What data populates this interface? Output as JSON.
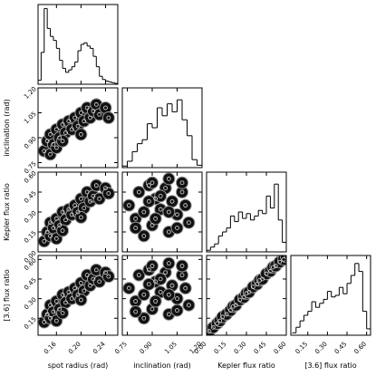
{
  "chart_data": {
    "type": "corner",
    "parameters": [
      {
        "label": "spot radius (rad)",
        "lim": [
          0.13,
          0.26
        ],
        "ticks": [
          0.16,
          {
            "value": 0.2,
            "label": "0.20"
          },
          0.24
        ],
        "bins": [
          0.13,
          0.135,
          0.14,
          0.145,
          0.15,
          0.155,
          0.16,
          0.165,
          0.17,
          0.175,
          0.18,
          0.185,
          0.19,
          0.195,
          0.2,
          0.205,
          0.21,
          0.215,
          0.22,
          0.225,
          0.23,
          0.235,
          0.24,
          0.245,
          0.25,
          0.255,
          0.26
        ],
        "counts": [
          5,
          40,
          95,
          70,
          60,
          55,
          45,
          30,
          20,
          15,
          18,
          22,
          28,
          42,
          50,
          52,
          48,
          45,
          35,
          22,
          10,
          6,
          4,
          3,
          2,
          1
        ]
      },
      {
        "label": "inclination (rad)",
        "lim": [
          0.72,
          1.2
        ],
        "ticks": [
          0.75,
          {
            "value": 0.9,
            "label": "0.90"
          },
          1.05,
          {
            "value": 1.2,
            "label": "1.20"
          }
        ],
        "bins": [
          0.72,
          0.75,
          0.78,
          0.81,
          0.84,
          0.87,
          0.9,
          0.93,
          0.96,
          0.99,
          1.02,
          1.05,
          1.08,
          1.11,
          1.14,
          1.17,
          1.2
        ],
        "counts": [
          2,
          8,
          20,
          30,
          35,
          55,
          50,
          75,
          65,
          80,
          70,
          85,
          60,
          40,
          10,
          3
        ]
      },
      {
        "label": "Kepler flux ratio",
        "lim": [
          0,
          0.6
        ],
        "ticks": [
          {
            "value": 0,
            "label": "0.00"
          },
          0.15,
          {
            "value": 0.3,
            "label": "0.30"
          },
          0.45,
          {
            "value": 0.6,
            "label": "0.60"
          }
        ],
        "bins": [
          0,
          0.03,
          0.06,
          0.09,
          0.12,
          0.15,
          0.18,
          0.21,
          0.24,
          0.27,
          0.3,
          0.33,
          0.36,
          0.39,
          0.42,
          0.45,
          0.48,
          0.51,
          0.54,
          0.57,
          0.6
        ],
        "counts": [
          2,
          6,
          10,
          20,
          25,
          30,
          45,
          38,
          50,
          42,
          48,
          40,
          45,
          52,
          48,
          70,
          55,
          85,
          40,
          12
        ]
      },
      {
        "label": "[3.6] flux ratio",
        "lim": [
          0.02,
          0.63
        ],
        "ticks": [
          0.15,
          {
            "value": 0.3,
            "label": "0.30"
          },
          0.45,
          {
            "value": 0.6,
            "label": "0.60"
          }
        ],
        "bins": [
          0.03,
          0.06,
          0.09,
          0.12,
          0.15,
          0.18,
          0.21,
          0.24,
          0.27,
          0.3,
          0.33,
          0.36,
          0.39,
          0.42,
          0.45,
          0.48,
          0.51,
          0.54,
          0.57,
          0.6,
          0.63
        ],
        "counts": [
          3,
          10,
          18,
          25,
          30,
          42,
          35,
          40,
          45,
          55,
          48,
          50,
          60,
          52,
          65,
          75,
          90,
          80,
          30,
          8
        ]
      }
    ],
    "hist_ylim": [
      0,
      100
    ],
    "pairs": [
      {
        "x": [
          0.14,
          0.145,
          0.15,
          0.15,
          0.155,
          0.16,
          0.16,
          0.165,
          0.17,
          0.175,
          0.18,
          0.185,
          0.19,
          0.195,
          0.2,
          0.205,
          0.21,
          0.215,
          0.22,
          0.225,
          0.23,
          0.24,
          0.245,
          0.17,
          0.2
        ],
        "y": [
          0.82,
          0.88,
          0.8,
          0.92,
          0.86,
          0.95,
          0.84,
          0.9,
          0.98,
          0.93,
          1.0,
          0.95,
          1.02,
          0.97,
          1.05,
          1.0,
          1.08,
          1.02,
          1.06,
          1.1,
          1.04,
          1.08,
          1.02,
          0.88,
          0.92
        ]
      },
      {
        "x": [
          0.14,
          0.145,
          0.15,
          0.15,
          0.155,
          0.16,
          0.16,
          0.165,
          0.17,
          0.175,
          0.18,
          0.185,
          0.19,
          0.195,
          0.2,
          0.205,
          0.21,
          0.215,
          0.22,
          0.225,
          0.23,
          0.24,
          0.245,
          0.17,
          0.2
        ],
        "y": [
          0.08,
          0.15,
          0.12,
          0.22,
          0.18,
          0.25,
          0.1,
          0.2,
          0.3,
          0.24,
          0.32,
          0.28,
          0.35,
          0.3,
          0.4,
          0.33,
          0.45,
          0.38,
          0.42,
          0.5,
          0.4,
          0.48,
          0.44,
          0.16,
          0.26
        ]
      },
      {
        "x": [
          0.76,
          0.8,
          0.82,
          0.85,
          0.88,
          0.9,
          0.92,
          0.95,
          0.98,
          1.0,
          1.02,
          1.05,
          1.08,
          1.1,
          1.12,
          0.85,
          0.9,
          0.95,
          1.0,
          1.05,
          0.8,
          0.92,
          1.0,
          1.08,
          0.88
        ],
        "y": [
          0.35,
          0.25,
          0.45,
          0.3,
          0.5,
          0.2,
          0.4,
          0.32,
          0.48,
          0.15,
          0.38,
          0.28,
          0.45,
          0.35,
          0.22,
          0.12,
          0.52,
          0.42,
          0.55,
          0.18,
          0.18,
          0.25,
          0.3,
          0.52,
          0.38
        ]
      },
      {
        "x": [
          0.14,
          0.145,
          0.15,
          0.15,
          0.155,
          0.16,
          0.16,
          0.165,
          0.17,
          0.175,
          0.18,
          0.185,
          0.19,
          0.195,
          0.2,
          0.205,
          0.21,
          0.215,
          0.22,
          0.225,
          0.23,
          0.24,
          0.245,
          0.17,
          0.2
        ],
        "y": [
          0.12,
          0.18,
          0.15,
          0.25,
          0.2,
          0.28,
          0.13,
          0.22,
          0.33,
          0.27,
          0.35,
          0.3,
          0.38,
          0.33,
          0.42,
          0.36,
          0.48,
          0.4,
          0.45,
          0.52,
          0.43,
          0.5,
          0.47,
          0.19,
          0.29
        ]
      },
      {
        "x": [
          0.76,
          0.8,
          0.82,
          0.85,
          0.88,
          0.9,
          0.92,
          0.95,
          0.98,
          1.0,
          1.02,
          1.05,
          1.08,
          1.1,
          1.12,
          0.85,
          0.9,
          0.95,
          1.0,
          1.05,
          0.8,
          0.92,
          1.0,
          1.08,
          0.88
        ],
        "y": [
          0.38,
          0.28,
          0.48,
          0.33,
          0.52,
          0.22,
          0.43,
          0.35,
          0.5,
          0.18,
          0.4,
          0.3,
          0.48,
          0.38,
          0.25,
          0.15,
          0.55,
          0.45,
          0.57,
          0.21,
          0.2,
          0.28,
          0.33,
          0.55,
          0.41
        ]
      },
      {
        "x": [
          0.02,
          0.05,
          0.08,
          0.1,
          0.12,
          0.15,
          0.18,
          0.2,
          0.22,
          0.25,
          0.28,
          0.3,
          0.32,
          0.35,
          0.38,
          0.4,
          0.42,
          0.45,
          0.48,
          0.5,
          0.52,
          0.55,
          0.58,
          0.6
        ],
        "y": [
          0.05,
          0.08,
          0.11,
          0.13,
          0.16,
          0.18,
          0.21,
          0.24,
          0.25,
          0.29,
          0.31,
          0.34,
          0.35,
          0.39,
          0.41,
          0.44,
          0.45,
          0.49,
          0.51,
          0.54,
          0.55,
          0.58,
          0.6,
          0.62
        ]
      }
    ]
  }
}
